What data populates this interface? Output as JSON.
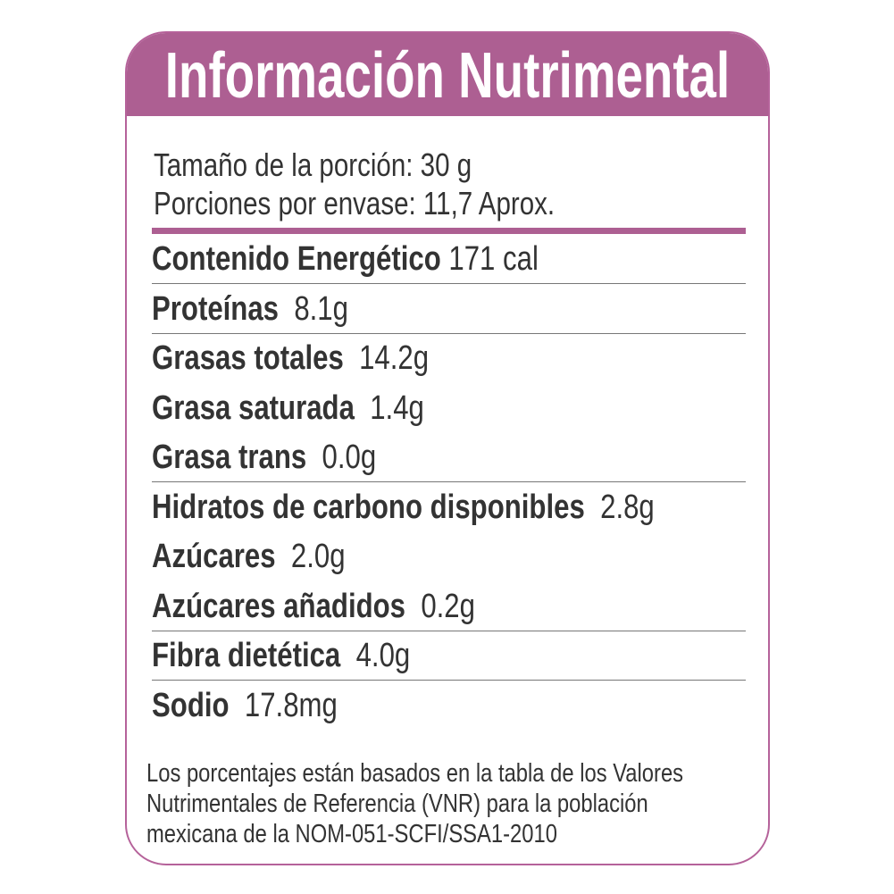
{
  "header": {
    "title": "Información Nutrimental"
  },
  "serving": {
    "size": "Tamaño de la porción: 30 g",
    "per_container": "Porciones por envase: 11,7 Aprox."
  },
  "nutrients": [
    {
      "label": "Contenido Energético",
      "value": "171 cal"
    },
    {
      "label": "Proteínas",
      "value": "8.1g"
    },
    {
      "label": "Grasas totales",
      "value": "14.2g"
    },
    {
      "label": "Grasa saturada",
      "value": "1.4g"
    },
    {
      "label": "Grasa trans",
      "value": "0.0g"
    },
    {
      "label": "Hidratos de carbono disponibles",
      "value": "2.8g"
    },
    {
      "label": "Azúcares",
      "value": "2.0g"
    },
    {
      "label": "Azúcares añadidos",
      "value": "0.2g"
    },
    {
      "label": "Fibra dietética",
      "value": "4.0g"
    },
    {
      "label": "Sodio",
      "value": "17.8mg"
    }
  ],
  "footnote": [
    "Los porcentajes están basados en  la tabla de los Valores",
    "Nutrimentales de Referencia (VNR) para la población",
    "mexicana de la NOM-051-SCFI/SSA1-2010"
  ],
  "colors": {
    "accent": "#ad5f92",
    "text": "#333333"
  }
}
